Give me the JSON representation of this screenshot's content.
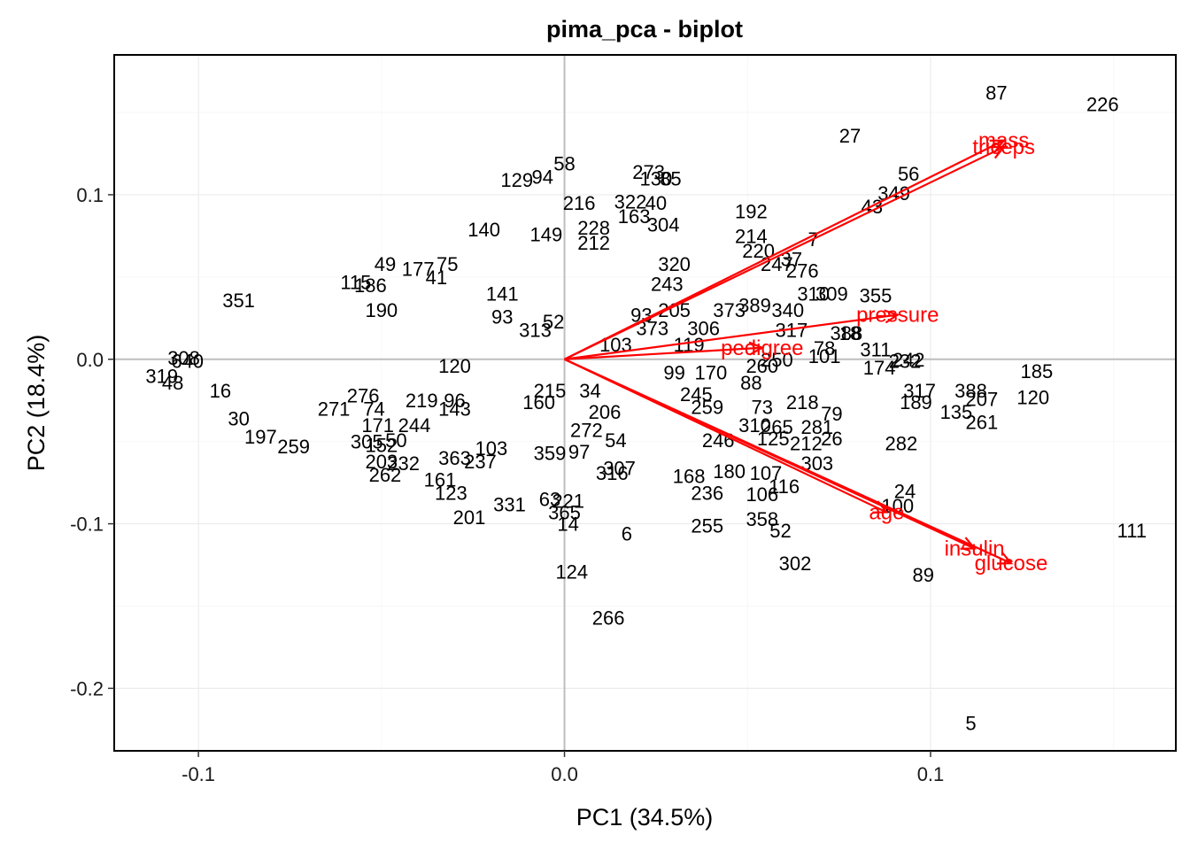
{
  "colors": {
    "arrow": "#ff0000",
    "ref_line": "#bebebe",
    "grid_major": "#ebebeb",
    "grid_minor": "#f5f5f5",
    "point_label": "#000000"
  },
  "chart_data": {
    "type": "scatter",
    "title": "pima_pca - biplot",
    "xlabel": "PC1 (34.5%)",
    "ylabel": "PC2 (18.4%)",
    "xlim": [
      -0.123,
      0.167
    ],
    "ylim": [
      -0.238,
      0.185
    ],
    "xticks": [
      -0.1,
      0.0,
      0.1
    ],
    "xtick_labels": [
      "-0.1",
      "0.0",
      "0.1"
    ],
    "yticks": [
      0.1,
      0.0,
      -0.1,
      -0.2
    ],
    "ytick_labels": [
      "0.1",
      "0.0",
      "-0.1",
      "-0.2"
    ],
    "grid": true,
    "reference_lines": {
      "x": 0,
      "y": 0
    },
    "loadings": [
      {
        "name": "mass",
        "x": 0.12,
        "y": 0.133
      },
      {
        "name": "triceps",
        "x": 0.12,
        "y": 0.129
      },
      {
        "name": "pressure",
        "x": 0.091,
        "y": 0.027
      },
      {
        "name": "pedigree",
        "x": 0.054,
        "y": 0.007
      },
      {
        "name": "age",
        "x": 0.088,
        "y": -0.093
      },
      {
        "name": "insulin",
        "x": 0.112,
        "y": -0.115
      },
      {
        "name": "glucose",
        "x": 0.122,
        "y": -0.124
      }
    ],
    "points": [
      [
        "87",
        0.118,
        0.162
      ],
      [
        "226",
        0.147,
        0.155
      ],
      [
        "27",
        0.078,
        0.136
      ],
      [
        "56",
        0.094,
        0.113
      ],
      [
        "349",
        0.09,
        0.101
      ],
      [
        "43",
        0.084,
        0.093
      ],
      [
        "7",
        0.068,
        0.073
      ],
      [
        "192",
        0.051,
        0.09
      ],
      [
        "214",
        0.051,
        0.075
      ],
      [
        "220",
        0.053,
        0.066
      ],
      [
        "247",
        0.058,
        0.058
      ],
      [
        "37",
        0.062,
        0.061
      ],
      [
        "276",
        0.065,
        0.054
      ],
      [
        "355",
        0.085,
        0.039
      ],
      [
        "309",
        0.073,
        0.04
      ],
      [
        "310",
        0.068,
        0.04
      ],
      [
        "388",
        0.077,
        0.016
      ],
      [
        "78",
        0.071,
        0.007
      ],
      [
        "101",
        0.071,
        0.002
      ],
      [
        "311",
        0.085,
        0.006
      ],
      [
        "174",
        0.086,
        -0.005
      ],
      [
        "232",
        0.093,
        -0.001
      ],
      [
        "242",
        0.094,
        0.0
      ],
      [
        "185",
        0.129,
        -0.007
      ],
      [
        "120",
        0.128,
        -0.023
      ],
      [
        "388",
        0.111,
        -0.019
      ],
      [
        "207",
        0.114,
        -0.024
      ],
      [
        "317",
        0.097,
        -0.019
      ],
      [
        "189",
        0.096,
        -0.026
      ],
      [
        "135",
        0.107,
        -0.032
      ],
      [
        "261",
        0.114,
        -0.038
      ],
      [
        "282",
        0.092,
        -0.051
      ],
      [
        "24",
        0.093,
        -0.08
      ],
      [
        "100",
        0.091,
        -0.089
      ],
      [
        "111",
        0.155,
        -0.104
      ],
      [
        "89",
        0.098,
        -0.131
      ],
      [
        "5",
        0.111,
        -0.221
      ],
      [
        "302",
        0.063,
        -0.124
      ],
      [
        "52",
        0.059,
        -0.104
      ],
      [
        "358",
        0.054,
        -0.097
      ],
      [
        "255",
        0.039,
        -0.101
      ],
      [
        "6",
        0.017,
        -0.106
      ],
      [
        "14",
        0.001,
        -0.1
      ],
      [
        "365",
        0.0,
        -0.093
      ],
      [
        "124",
        0.002,
        -0.129
      ],
      [
        "266",
        0.012,
        -0.157
      ],
      [
        "331",
        -0.015,
        -0.088
      ],
      [
        "201",
        -0.026,
        -0.096
      ],
      [
        "123",
        -0.031,
        -0.081
      ],
      [
        "161",
        -0.034,
        -0.073
      ],
      [
        "63",
        -0.004,
        -0.085
      ],
      [
        "221",
        0.001,
        -0.086
      ],
      [
        "236",
        0.039,
        -0.081
      ],
      [
        "106",
        0.054,
        -0.082
      ],
      [
        "116",
        0.06,
        -0.077
      ],
      [
        "107",
        0.055,
        -0.069
      ],
      [
        "303",
        0.069,
        -0.063
      ],
      [
        "212",
        0.066,
        -0.051
      ],
      [
        "26",
        0.073,
        -0.048
      ],
      [
        "125",
        0.057,
        -0.048
      ],
      [
        "246",
        0.042,
        -0.049
      ],
      [
        "281",
        0.069,
        -0.041
      ],
      [
        "79",
        0.073,
        -0.033
      ],
      [
        "218",
        0.065,
        -0.026
      ],
      [
        "351",
        -0.089,
        0.036
      ],
      [
        "308",
        -0.104,
        0.001
      ],
      [
        "319",
        -0.11,
        -0.01
      ],
      [
        "48",
        -0.107,
        -0.014
      ],
      [
        "640",
        -0.103,
        -0.001
      ],
      [
        "16",
        -0.094,
        -0.019
      ],
      [
        "58",
        0.0,
        0.119
      ],
      [
        "129",
        -0.013,
        0.109
      ],
      [
        "94",
        -0.006,
        0.111
      ],
      [
        "273",
        0.023,
        0.114
      ],
      [
        "130",
        0.025,
        0.11
      ],
      [
        "85",
        0.029,
        0.11
      ],
      [
        "216",
        0.004,
        0.095
      ],
      [
        "322",
        0.018,
        0.096
      ],
      [
        "40",
        0.025,
        0.095
      ],
      [
        "163",
        0.019,
        0.087
      ],
      [
        "304",
        0.027,
        0.082
      ],
      [
        "140",
        -0.022,
        0.079
      ],
      [
        "149",
        -0.005,
        0.076
      ],
      [
        "228",
        0.008,
        0.08
      ],
      [
        "212",
        0.008,
        0.071
      ],
      [
        "320",
        0.03,
        0.058
      ],
      [
        "243",
        0.028,
        0.046
      ],
      [
        "373",
        0.024,
        0.019
      ],
      [
        "306",
        0.038,
        0.019
      ],
      [
        "119",
        0.034,
        0.009
      ],
      [
        "99",
        0.03,
        -0.008
      ],
      [
        "170",
        0.04,
        -0.008
      ],
      [
        "245",
        0.036,
        -0.021
      ],
      [
        "259",
        0.039,
        -0.029
      ],
      [
        "54",
        0.014,
        -0.049
      ],
      [
        "307",
        0.015,
        -0.066
      ],
      [
        "316",
        0.013,
        -0.069
      ],
      [
        "180",
        0.045,
        -0.068
      ],
      [
        "168",
        0.034,
        -0.071
      ],
      [
        "49",
        -0.049,
        0.058
      ],
      [
        "115",
        -0.057,
        0.047
      ],
      [
        "186",
        -0.053,
        0.045
      ],
      [
        "244",
        -0.041,
        -0.04
      ],
      [
        "171",
        -0.051,
        -0.04
      ],
      [
        "232",
        -0.044,
        -0.063
      ],
      [
        "203",
        -0.05,
        -0.062
      ],
      [
        "262",
        -0.049,
        -0.07
      ],
      [
        "152",
        -0.05,
        -0.052
      ],
      [
        "305",
        -0.054,
        -0.05
      ],
      [
        "50",
        -0.046,
        -0.049
      ],
      [
        "259",
        -0.074,
        -0.053
      ],
      [
        "197",
        -0.083,
        -0.047
      ],
      [
        "30",
        -0.089,
        -0.036
      ],
      [
        "237",
        -0.023,
        -0.062
      ],
      [
        "363",
        -0.03,
        -0.06
      ],
      [
        "103",
        -0.02,
        -0.054
      ],
      [
        "359",
        -0.004,
        -0.057
      ],
      [
        "97",
        0.004,
        -0.056
      ],
      [
        "272",
        0.006,
        -0.043
      ],
      [
        "206",
        0.011,
        -0.032
      ],
      [
        "34",
        0.007,
        -0.019
      ],
      [
        "160",
        -0.007,
        -0.026
      ],
      [
        "215",
        -0.004,
        -0.019
      ],
      [
        "190",
        -0.05,
        0.03
      ],
      [
        "205",
        0.03,
        0.03
      ],
      [
        "373",
        0.045,
        0.03
      ],
      [
        "389",
        0.052,
        0.033
      ],
      [
        "340",
        0.061,
        0.03
      ],
      [
        "18",
        0.078,
        0.016
      ],
      [
        "317",
        0.062,
        0.018
      ],
      [
        "250",
        0.058,
        0.0
      ],
      [
        "260",
        0.054,
        -0.004
      ],
      [
        "88",
        0.051,
        -0.014
      ],
      [
        "73",
        0.054,
        -0.029
      ],
      [
        "310",
        0.052,
        -0.04
      ],
      [
        "265",
        0.058,
        -0.041
      ],
      [
        "93",
        0.021,
        0.027
      ],
      [
        "103",
        0.014,
        0.009
      ],
      [
        "313",
        -0.008,
        0.018
      ],
      [
        "52",
        -0.003,
        0.023
      ],
      [
        "143",
        -0.03,
        -0.03
      ],
      [
        "271",
        -0.063,
        -0.03
      ],
      [
        "74",
        -0.052,
        -0.03
      ],
      [
        "276",
        -0.055,
        -0.022
      ],
      [
        "219",
        -0.039,
        -0.025
      ],
      [
        "96",
        -0.03,
        -0.025
      ],
      [
        "120",
        -0.03,
        -0.004
      ],
      [
        "41",
        -0.035,
        0.05
      ],
      [
        "177",
        -0.04,
        0.055
      ],
      [
        "75",
        -0.032,
        0.058
      ],
      [
        "141",
        -0.017,
        0.04
      ],
      [
        "93",
        -0.017,
        0.026
      ]
    ]
  }
}
